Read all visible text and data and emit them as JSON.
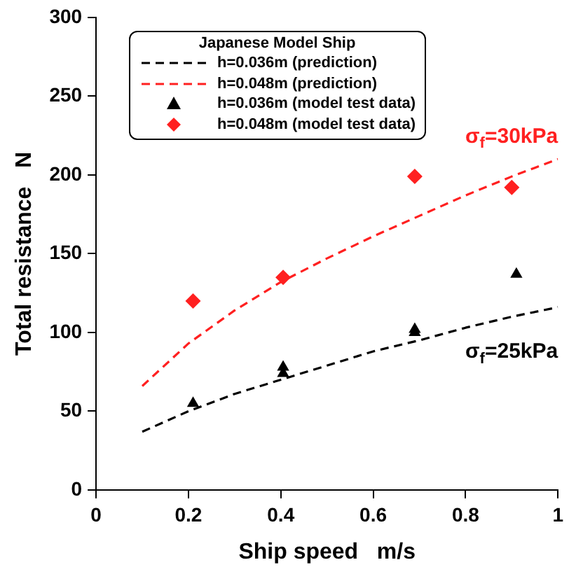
{
  "chart_data": {
    "type": "scatter",
    "xlabel": "Ship speed   m/s",
    "ylabel": "Total resistance   N",
    "legend_title": "Japanese Model Ship",
    "legend": "top left",
    "xlim": [
      0,
      1
    ],
    "ylim": [
      0,
      300
    ],
    "xticks": [
      0,
      0.2,
      0.4,
      0.6,
      0.8,
      1
    ],
    "yticks": [
      0,
      50,
      100,
      150,
      200,
      250,
      300
    ],
    "grid": false,
    "series": [
      {
        "name": "h=0.036m (prediction)",
        "type": "line",
        "color": "#000000",
        "line_style": "dashed",
        "marker": "none",
        "x": [
          0.1,
          0.2,
          0.3,
          0.4,
          0.5,
          0.6,
          0.7,
          0.8,
          0.9,
          1
        ],
        "values": [
          37,
          50,
          61,
          70,
          79,
          88,
          95,
          103,
          110,
          116
        ]
      },
      {
        "name": "h=0.048m (prediction)",
        "type": "line",
        "color": "#ff2020",
        "line_style": "dashed",
        "marker": "none",
        "x": [
          0.1,
          0.2,
          0.3,
          0.4,
          0.5,
          0.6,
          0.7,
          0.8,
          0.9,
          1
        ],
        "values": [
          66,
          93,
          114,
          132,
          147,
          161,
          174,
          187,
          199,
          210
        ]
      },
      {
        "name": "h=0.036m (model test data)",
        "type": "scatter",
        "color": "#000000",
        "marker": "triangle",
        "x": [
          0.21,
          0.405,
          0.405,
          0.69,
          0.69,
          0.91
        ],
        "values": [
          55,
          78,
          74,
          102,
          100,
          137
        ]
      },
      {
        "name": "h=0.048m (model test data)",
        "type": "scatter",
        "color": "#ff2020",
        "marker": "diamond",
        "x": [
          0.21,
          0.405,
          0.69,
          0.9
        ],
        "values": [
          120,
          135,
          199,
          192
        ]
      }
    ],
    "annotations": [
      {
        "text": "σ$_{f}$=30kPa",
        "x": 1,
        "y": 210
      },
      {
        "text": "σ$_{f}$=25kPa",
        "x": 1,
        "y": 116
      }
    ]
  }
}
